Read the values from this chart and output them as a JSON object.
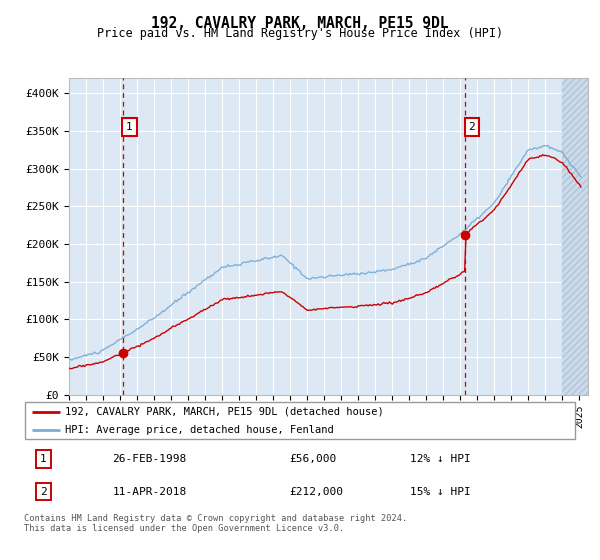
{
  "title": "192, CAVALRY PARK, MARCH, PE15 9DL",
  "subtitle": "Price paid vs. HM Land Registry's House Price Index (HPI)",
  "ylim": [
    0,
    420000
  ],
  "yticks": [
    0,
    50000,
    100000,
    150000,
    200000,
    250000,
    300000,
    350000,
    400000
  ],
  "ytick_labels": [
    "£0",
    "£50K",
    "£100K",
    "£150K",
    "£200K",
    "£250K",
    "£300K",
    "£350K",
    "£400K"
  ],
  "background_color": "#dce9f5",
  "grid_color": "#ffffff",
  "red_line_color": "#cc0000",
  "blue_line_color": "#7dadd4",
  "marker_color": "#cc0000",
  "sale1_price": 56000,
  "sale1_x": 1998.15,
  "sale2_price": 212000,
  "sale2_x": 2018.28,
  "legend_line1": "192, CAVALRY PARK, MARCH, PE15 9DL (detached house)",
  "legend_line2": "HPI: Average price, detached house, Fenland",
  "table_row1": [
    "1",
    "26-FEB-1998",
    "£56,000",
    "12% ↓ HPI"
  ],
  "table_row2": [
    "2",
    "11-APR-2018",
    "£212,000",
    "15% ↓ HPI"
  ],
  "footer": "Contains HM Land Registry data © Crown copyright and database right 2024.\nThis data is licensed under the Open Government Licence v3.0.",
  "xmin": 1995.0,
  "xmax": 2025.5,
  "hatch_start": 2024.0
}
